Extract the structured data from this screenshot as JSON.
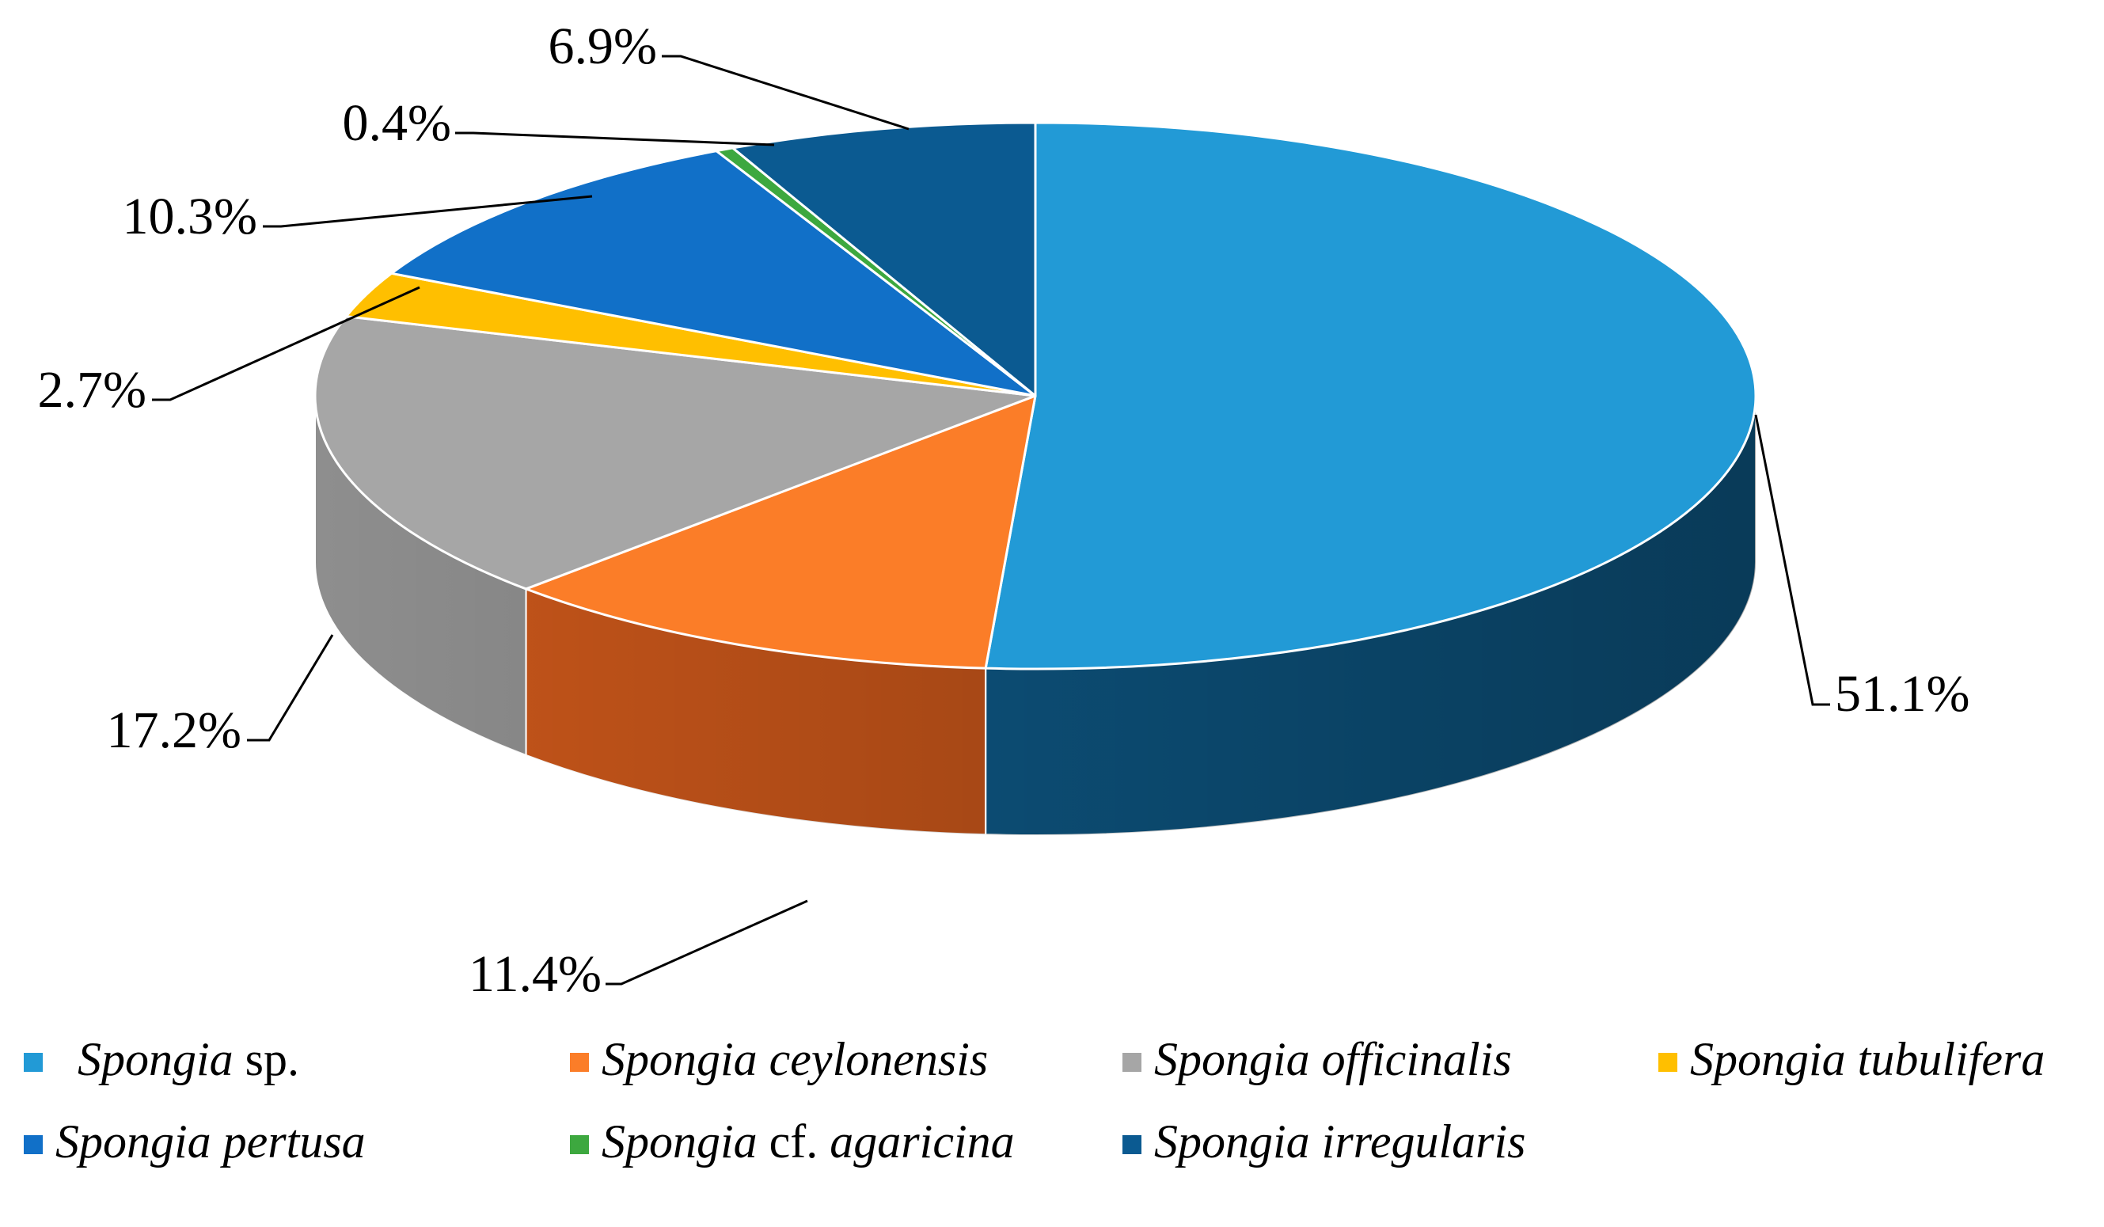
{
  "chart_data": {
    "type": "pie",
    "style": "3d",
    "title": "",
    "unit": "%",
    "series": [
      {
        "name": "Spongia sp.",
        "genus": "Spongia",
        "epithet": "",
        "suffix": "sp.",
        "value": 51.1,
        "label": "51.1%",
        "color": "#229AD6",
        "side": "#0E5A88"
      },
      {
        "name": "Spongia ceylonensis",
        "genus": "Spongia",
        "epithet": "ceylonensis",
        "suffix": "",
        "value": 11.4,
        "label": "11.4%",
        "color": "#FB7D28",
        "side": "#C8561A"
      },
      {
        "name": "Spongia officinalis",
        "genus": "Spongia",
        "epithet": "officinalis",
        "suffix": "",
        "value": 17.2,
        "label": "17.2%",
        "color": "#A6A6A6",
        "side": "#8E8E8E"
      },
      {
        "name": "Spongia tubulifera",
        "genus": "Spongia",
        "epithet": "tubulifera",
        "suffix": "",
        "value": 2.7,
        "label": "2.7%",
        "color": "#FFBF00",
        "side": "#C99600"
      },
      {
        "name": "Spongia pertusa",
        "genus": "Spongia",
        "epithet": "pertusa",
        "suffix": "",
        "value": 10.3,
        "label": "10.3%",
        "color": "#1170C8",
        "side": "#0A4F8E"
      },
      {
        "name": "Spongia cf. agaricina",
        "genus": "Spongia",
        "epithet": "agaricina",
        "suffix": "",
        "prefix": "cf.",
        "value": 0.4,
        "label": "0.4%",
        "color": "#3DA83F",
        "side": "#2A7A2C"
      },
      {
        "name": "Spongia irregularis",
        "genus": "Spongia",
        "epithet": "irregularis",
        "suffix": "",
        "value": 6.9,
        "label": "6.9%",
        "color": "#0B5A91",
        "side": "#073C62"
      }
    ],
    "legend": {
      "position": "bottom",
      "rows": [
        [
          0,
          1,
          2,
          3
        ],
        [
          4,
          5,
          6
        ]
      ]
    }
  }
}
